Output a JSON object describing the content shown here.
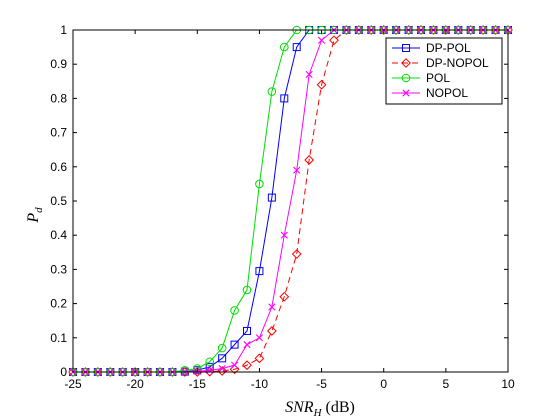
{
  "chart_data": {
    "type": "line",
    "title": "",
    "xlabel": "SNR_H (dB)",
    "xlabel_main": "SNR",
    "xlabel_sub": "H",
    "xlabel_unit": "(dB)",
    "ylabel": "P_d",
    "ylabel_main": "P",
    "ylabel_sub": "d",
    "xlim": [
      -25,
      10
    ],
    "ylim": [
      0,
      1
    ],
    "xticks": [
      -25,
      -20,
      -15,
      -10,
      -5,
      0,
      5,
      10
    ],
    "yticks": [
      0,
      0.1,
      0.2,
      0.3,
      0.4,
      0.5,
      0.6,
      0.7,
      0.8,
      0.9,
      1
    ],
    "xtick_labels": [
      "-25",
      "-20",
      "-15",
      "-10",
      "-5",
      "0",
      "5",
      "10"
    ],
    "ytick_labels": [
      "0",
      "0.1",
      "0.2",
      "0.3",
      "0.4",
      "0.5",
      "0.6",
      "0.7",
      "0.8",
      "0.9",
      "1"
    ],
    "grid": false,
    "legend_position": "top-right",
    "x": [
      -25,
      -24,
      -23,
      -22,
      -21,
      -20,
      -19,
      -18,
      -17,
      -16,
      -15,
      -14,
      -13,
      -12,
      -11,
      -10,
      -9,
      -8,
      -7,
      -6,
      -5,
      -4,
      -3,
      -2,
      -1,
      0,
      1,
      2,
      3,
      4,
      5,
      6,
      7,
      8,
      9,
      10
    ],
    "series": [
      {
        "name": "DP-POL",
        "color": "#0000ff",
        "marker": "square",
        "dash": "solid",
        "values": [
          0,
          0,
          0,
          0,
          0,
          0,
          0,
          0,
          0,
          0.001,
          0.005,
          0.015,
          0.04,
          0.08,
          0.12,
          0.295,
          0.51,
          0.8,
          0.95,
          1,
          1,
          1,
          1,
          1,
          1,
          1,
          1,
          1,
          1,
          1,
          1,
          1,
          1,
          1,
          1,
          1
        ]
      },
      {
        "name": "DP-NOPOL",
        "color": "#ff0000",
        "marker": "diamond",
        "dash": "dashed",
        "values": [
          0,
          0,
          0,
          0,
          0,
          0,
          0,
          0,
          0,
          0,
          0,
          0.001,
          0.003,
          0.008,
          0.02,
          0.04,
          0.12,
          0.22,
          0.345,
          0.62,
          0.84,
          0.97,
          1,
          1,
          1,
          1,
          1,
          1,
          1,
          1,
          1,
          1,
          1,
          1,
          1,
          1
        ]
      },
      {
        "name": "POL",
        "color": "#00dd00",
        "marker": "circle",
        "dash": "solid",
        "values": [
          0,
          0,
          0,
          0,
          0,
          0,
          0,
          0,
          0,
          0.005,
          0.01,
          0.03,
          0.07,
          0.18,
          0.24,
          0.55,
          0.82,
          0.95,
          1,
          1,
          1,
          1,
          1,
          1,
          1,
          1,
          1,
          1,
          1,
          1,
          1,
          1,
          1,
          1,
          1,
          1
        ]
      },
      {
        "name": "NOPOL",
        "color": "#ff00ff",
        "marker": "x",
        "dash": "solid",
        "values": [
          0,
          0,
          0,
          0,
          0,
          0,
          0,
          0,
          0,
          0,
          0.002,
          0.005,
          0.01,
          0.02,
          0.08,
          0.1,
          0.19,
          0.4,
          0.59,
          0.87,
          0.97,
          1,
          1,
          1,
          1,
          1,
          1,
          1,
          1,
          1,
          1,
          1,
          1,
          1,
          1,
          1
        ]
      }
    ]
  }
}
